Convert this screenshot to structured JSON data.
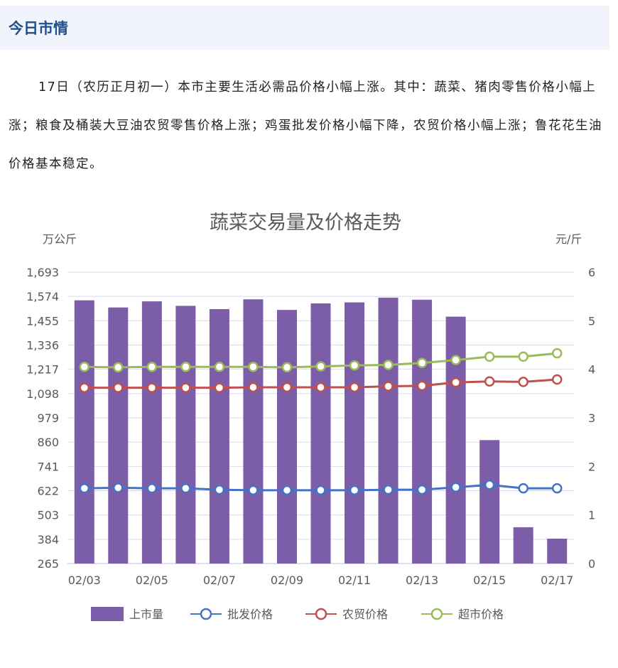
{
  "section": {
    "title": "今日市情",
    "paragraph": "17日（农历正月初一）本市主要生活必需品价格小幅上涨。其中：蔬菜、猪肉零售价格小幅上涨；粮食及桶装大豆油农贸零售价格上涨；鸡蛋批发价格小幅下降，农贸价格小幅上涨；鲁花花生油价格基本稳定。"
  },
  "chart_data": {
    "type": "bar",
    "title": "蔬菜交易量及价格走势",
    "ylabel_left": "万公斤",
    "ylabel_right": "元/斤",
    "categories": [
      "02/03",
      "02/04",
      "02/05",
      "02/06",
      "02/07",
      "02/08",
      "02/09",
      "02/10",
      "02/11",
      "02/12",
      "02/13",
      "02/14",
      "02/15",
      "02/16",
      "02/17"
    ],
    "x_tick_labels": [
      "02/03",
      "02/05",
      "02/07",
      "02/09",
      "02/11",
      "02/13",
      "02/15",
      "02/17"
    ],
    "y_left_ticks": [
      "1,693",
      "1,574",
      "1,455",
      "1,336",
      "1,217",
      "1,098",
      "979",
      "860",
      "741",
      "622",
      "503",
      "384",
      "265"
    ],
    "y_left_range": [
      265,
      1693
    ],
    "y_right_ticks": [
      "6",
      "5",
      "4",
      "3",
      "2",
      "1",
      "0"
    ],
    "y_right_range": [
      0,
      6
    ],
    "grid": true,
    "legend_position": "bottom",
    "series": [
      {
        "name": "上市量",
        "type": "bar",
        "axis": "left",
        "color": "#7b5ea7",
        "values": [
          1555,
          1520,
          1550,
          1528,
          1512,
          1560,
          1508,
          1540,
          1545,
          1568,
          1558,
          1475,
          870,
          443,
          387
        ]
      },
      {
        "name": "批发价格",
        "type": "line",
        "axis": "right",
        "color": "#4472c4",
        "values": [
          1.55,
          1.56,
          1.55,
          1.55,
          1.52,
          1.51,
          1.51,
          1.51,
          1.51,
          1.52,
          1.52,
          1.57,
          1.62,
          1.55,
          1.55
        ]
      },
      {
        "name": "农贸价格",
        "type": "line",
        "axis": "right",
        "color": "#c0504d",
        "values": [
          3.62,
          3.62,
          3.62,
          3.62,
          3.62,
          3.63,
          3.63,
          3.63,
          3.63,
          3.65,
          3.66,
          3.73,
          3.75,
          3.74,
          3.79
        ]
      },
      {
        "name": "超市价格",
        "type": "line",
        "axis": "right",
        "color": "#9bbb59",
        "values": [
          4.05,
          4.04,
          4.05,
          4.05,
          4.05,
          4.05,
          4.04,
          4.06,
          4.08,
          4.09,
          4.13,
          4.19,
          4.26,
          4.26,
          4.33
        ]
      }
    ]
  }
}
